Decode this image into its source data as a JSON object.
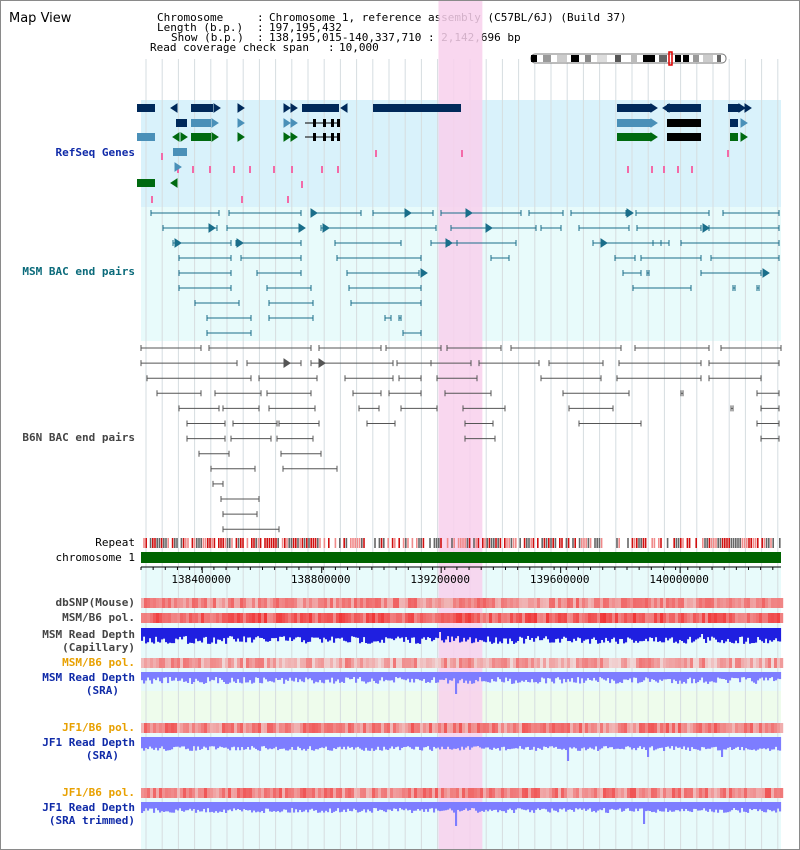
{
  "header": {
    "title": "Map View",
    "chromosome_label": "Chromosome",
    "chromosome_value": "Chromosome 1, reference assembly (C57BL/6J) (Build 37)",
    "length_label": "Length (b.p.)",
    "length_value": "197,195,432",
    "show_label": "Show (b.p.)",
    "show_value": "138,195,015-140,337,710 : 2,142,696 bp",
    "coverage_label": "Read coverage check span",
    "coverage_value": "10,000"
  },
  "tracks": {
    "refseq": "RefSeq Genes",
    "msm_bac": "MSM BAC end pairs",
    "b6n_bac": "B6N BAC end pairs",
    "repeat": "Repeat",
    "chromosome": "chromosome 1",
    "dbsnp": "dbSNP(Mouse)",
    "msm_b6_pol_1": "MSM/B6 pol.",
    "msm_depth_cap_1": "MSM Read Depth",
    "msm_depth_cap_2": "(Capillary)",
    "msm_b6_pol_2": "MSM/B6 pol.",
    "msm_depth_sra_1": "MSM Read Depth",
    "msm_depth_sra_2": "(SRA)",
    "jf1_b6_pol_1": "JF1/B6 pol.",
    "jf1_depth_sra_1": "JF1 Read Depth",
    "jf1_depth_sra_2": "(SRA)",
    "jf1_b6_pol_2": "JF1/B6 pol.",
    "jf1_depth_trim_1": "JF1 Read Depth",
    "jf1_depth_trim_2": "(SRA trimmed)"
  },
  "axis": {
    "start_bp": 138195015,
    "end_bp": 140337710,
    "ticks": [
      "138400000",
      "138800000",
      "139200000",
      "139600000",
      "140000000"
    ],
    "tick_values": [
      138400000,
      138800000,
      139200000,
      139600000,
      140000000
    ]
  },
  "highlight": {
    "start_bp": 139191000,
    "end_bp": 139338000
  },
  "colors": {
    "refseq_bg": "#d9f2fb",
    "bac_bg": "#e8fbfb",
    "highlight": "#f8d0ec",
    "gene_dark": "#00295a",
    "gene_mid": "#4a90b8",
    "gene_green": "#006a10",
    "msm_line": "#1a6e8a",
    "b6n_line": "#555555",
    "chromosome_bar": "#006400",
    "depth_dark": "#1f1fe0",
    "depth_light": "#7d7dff"
  }
}
